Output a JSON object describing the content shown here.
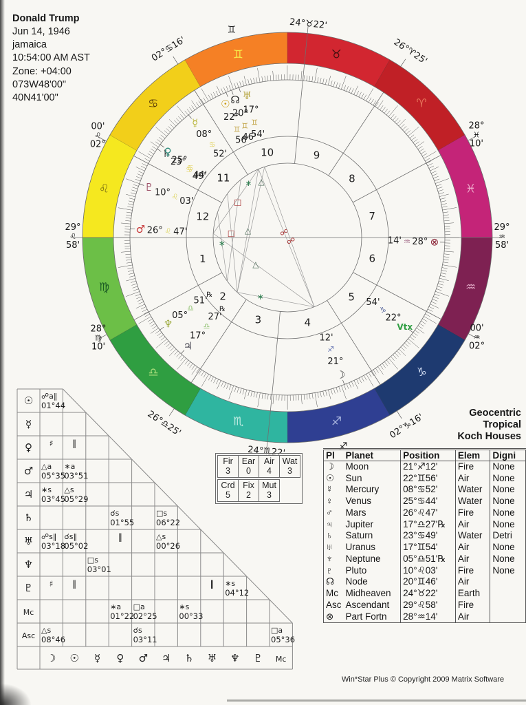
{
  "header": {
    "name": "Donald Trump",
    "lines": [
      "Jun 14, 1946",
      "jamaica",
      "10:54:00 AM AST",
      "Zone: +04:00",
      "073W48'00\"",
      "40N41'00\""
    ]
  },
  "house_system": {
    "lines": [
      "Geocentric",
      "Tropical",
      "Koch Houses"
    ]
  },
  "footer": {
    "credit": "Win*Star Plus © Copyright 2009 Matrix Software"
  },
  "wheel": {
    "asc_lon": 149.9667,
    "signs": [
      {
        "name": "Aries",
        "glyph": "♈",
        "color": "#c02026",
        "glyph_color": "#e8765c"
      },
      {
        "name": "Taurus",
        "glyph": "♉",
        "color": "#d22630",
        "glyph_color": "#44100f"
      },
      {
        "name": "Gemini",
        "glyph": "♊",
        "color": "#f58025",
        "glyph_color": "#f7e94a"
      },
      {
        "name": "Cancer",
        "glyph": "♋",
        "color": "#f2cf1a",
        "glyph_color": "#5c3e08"
      },
      {
        "name": "Leo",
        "glyph": "♌",
        "color": "#f5e81f",
        "glyph_color": "#877c16"
      },
      {
        "name": "Virgo",
        "glyph": "♍",
        "color": "#6cbf47",
        "glyph_color": "#1c5c24"
      },
      {
        "name": "Libra",
        "glyph": "♎",
        "color": "#2f9e41",
        "glyph_color": "#aadd7c"
      },
      {
        "name": "Scorpio",
        "glyph": "♏",
        "color": "#2fb5a0",
        "glyph_color": "#c2ece2"
      },
      {
        "name": "Sagittarius",
        "glyph": "♐",
        "color": "#2f3f92",
        "glyph_color": "#aab6de"
      },
      {
        "name": "Capricorn",
        "glyph": "♑",
        "color": "#1e3a70",
        "glyph_color": "#cdd8ee"
      },
      {
        "name": "Aquarius",
        "glyph": "♒",
        "color": "#7e2152",
        "glyph_color": "#e2aac6"
      },
      {
        "name": "Pisces",
        "glyph": "♓",
        "color": "#c42478",
        "glyph_color": "#eeaccc"
      }
    ],
    "outer_glyphs": [
      {
        "glyph": "♊",
        "lon": 75
      },
      {
        "glyph": "♐",
        "lon": 255
      }
    ],
    "cusps": [
      {
        "house": 1,
        "lon": 149.9667,
        "label": [
          "29°",
          "♌",
          "58'"
        ],
        "stacked": true,
        "axis": "horizontal"
      },
      {
        "house": 2,
        "lon": 178.1667,
        "label": [
          "28°",
          "♍",
          "10'"
        ],
        "stacked": true
      },
      {
        "house": 3,
        "lon": 206.4167,
        "label": [
          "26°♎25'"
        ]
      },
      {
        "house": 4,
        "lon": 234.3667,
        "label": [
          "24°♏22'"
        ],
        "axis": "radial"
      },
      {
        "house": 5,
        "lon": 272.2667,
        "label": [
          "02°♑16'"
        ]
      },
      {
        "house": 6,
        "lon": 302.0,
        "label": [
          "00'",
          "♒",
          "02°"
        ],
        "stacked": true
      },
      {
        "house": 7,
        "lon": 329.9667,
        "label": [
          "29°",
          "♒",
          "58'"
        ],
        "stacked": true,
        "axis": "horizontal"
      },
      {
        "house": 8,
        "lon": 358.1667,
        "label": [
          "28°",
          "♓",
          "10'"
        ],
        "stacked": true
      },
      {
        "house": 9,
        "lon": 26.4167,
        "label": [
          "26°♈25'"
        ]
      },
      {
        "house": 10,
        "lon": 54.3667,
        "label": [
          "24°♉22'"
        ],
        "axis": "radial"
      },
      {
        "house": 11,
        "lon": 92.2667,
        "label": [
          "02°♋16'"
        ]
      },
      {
        "house": 12,
        "lon": 122.0,
        "label": [
          "00'",
          "♌",
          "02°"
        ],
        "stacked": true
      }
    ],
    "planets": [
      {
        "name": "Sun",
        "glyph": "☉",
        "lon": 82.933,
        "deg": "22°",
        "sign": "♊",
        "min": "56'",
        "color": "#c99a10",
        "sign_color": "#c2a448",
        "spread": 2
      },
      {
        "name": "Node",
        "glyph": "☊",
        "lon": 80.767,
        "deg": "20°",
        "sign": "♊",
        "min": "46'",
        "color": "#222222",
        "sign_color": "#c2a448",
        "spread": 0
      },
      {
        "name": "Uranus",
        "glyph": "♅",
        "lon": 77.9,
        "deg": "17°",
        "sign": "♊",
        "min": "54'",
        "color": "#b3a138",
        "sign_color": "#c2a448",
        "spread": -2
      },
      {
        "name": "Mercury",
        "glyph": "☿",
        "lon": 98.867,
        "deg": "08°",
        "sign": "♋",
        "min": "52'",
        "color": "#b9b53a",
        "sign_color": "#e3d466"
      },
      {
        "name": "Saturn",
        "glyph": "♄",
        "lon": 113.817,
        "deg": "23°",
        "sign": "♋",
        "min": "49'",
        "color": "#3f3f3f",
        "sign_color": "#e3d466",
        "spread": 1.4
      },
      {
        "name": "Venus",
        "glyph": "♀",
        "lon": 115.733,
        "deg": "25°",
        "sign": "♋",
        "min": "44'",
        "color": "#2d8b7b",
        "sign_color": "#e3d466",
        "spread": -1.4
      },
      {
        "name": "Pluto",
        "glyph": "♇",
        "lon": 130.05,
        "deg": "10°",
        "sign": "♌",
        "min": "03'",
        "color": "#9c4f66",
        "sign_color": "#ddd45e"
      },
      {
        "name": "Mars",
        "glyph": "♂",
        "lon": 146.783,
        "deg": "26°",
        "sign": "♌",
        "min": "47'",
        "color": "#c63434",
        "sign_color": "#ddd45e"
      },
      {
        "name": "Neptune",
        "glyph": "♆",
        "lon": 185.85,
        "deg": "05°",
        "sign": "♎",
        "min": "51'",
        "rx": true,
        "color": "#9aa838",
        "sign_color": "#8cbf6c"
      },
      {
        "name": "Jupiter",
        "glyph": "♃",
        "lon": 197.45,
        "deg": "17°",
        "sign": "♎",
        "min": "27'",
        "rx": true,
        "color": "#4a4a55",
        "sign_color": "#8cbf6c"
      },
      {
        "name": "Moon",
        "glyph": "☽",
        "lon": 261.2,
        "deg": "21°",
        "sign": "♐",
        "min": "12'",
        "color": "#2f2f2f",
        "sign_color": "#6676b3"
      },
      {
        "name": "Vertex",
        "glyph": "Vtx",
        "lon": 292.9,
        "deg": "22°",
        "sign": "♑",
        "min": "54'",
        "color": "#2f9e41",
        "sign_color": "#56659c",
        "text_glyph": true
      },
      {
        "name": "Part-of-Fortune",
        "glyph": "⊗",
        "lon": 328.233,
        "deg": "28°",
        "sign": "♒",
        "min": "14'",
        "color": "#8a2335",
        "sign_color": "#8f4c70"
      }
    ],
    "aspect_lines": [
      {
        "p1": "Sun",
        "p2": "Moon",
        "glyph": "☍",
        "t": 0.46,
        "gcolor": "#a83434"
      },
      {
        "p1": "Uranus",
        "p2": "Moon",
        "glyph": "☍",
        "t": 0.53,
        "gcolor": "#a83434"
      },
      {
        "p1": "Mars",
        "p2": "Moon",
        "glyph": "△",
        "t": 0.42,
        "gcolor": "#52705e"
      },
      {
        "p1": "Mars",
        "p2": "Sun",
        "glyph": "∗",
        "t": 0.78,
        "gcolor": "#2e7d4f"
      },
      {
        "p1": "Jupiter",
        "p2": "Moon",
        "glyph": "∗",
        "t": 0.3,
        "gcolor": "#2e7d4f"
      },
      {
        "p1": "Jupiter",
        "p2": "Sun",
        "glyph": "△",
        "t": 0.5,
        "gcolor": "#52705e"
      },
      {
        "p1": "Uranus",
        "p2": "Jupiter",
        "glyph": "△",
        "t": 0.12,
        "gcolor": "#52705e"
      },
      {
        "p1": "Saturn",
        "p2": "Jupiter",
        "glyph": "□",
        "t": 0.4,
        "gcolor": "#a83434"
      },
      {
        "p1": "Neptune",
        "p2": "Mercury",
        "glyph": "□",
        "t": 0.78,
        "gcolor": "#a83434"
      },
      {
        "p1": "Pluto",
        "p2": "Neptune",
        "glyph": "∗",
        "t": 0.45,
        "gcolor": "#2e7d4f"
      }
    ]
  },
  "aspect_grid": {
    "row_labels": [
      "☉",
      "☿",
      "♀",
      "♂",
      "♃",
      "♄",
      "♅",
      "♆",
      "♇",
      "Mc",
      "Asc"
    ],
    "col_labels": [
      "☽",
      "☉",
      "☿",
      "♀",
      "♂",
      "♃",
      "♄",
      "♅",
      "♆",
      "♇",
      "Mc"
    ],
    "rows": [
      {
        "cells": {
          "0": {
            "a": "☍a‖",
            "o": "01°44"
          }
        }
      },
      {
        "cells": {}
      },
      {
        "cells": {
          "0": {
            "a": "♯"
          },
          "1": {
            "a": "‖"
          }
        }
      },
      {
        "cells": {
          "0": {
            "a": "△a",
            "o": "05°35"
          },
          "1": {
            "a": "∗a",
            "o": "03°51"
          }
        }
      },
      {
        "cells": {
          "0": {
            "a": "∗s",
            "o": "03°45"
          },
          "1": {
            "a": "△s",
            "o": "05°29"
          }
        }
      },
      {
        "cells": {
          "3": {
            "a": "☌s",
            "o": "01°55"
          },
          "5": {
            "a": "□s",
            "o": "06°22"
          }
        }
      },
      {
        "cells": {
          "0": {
            "a": "☍s‖",
            "o": "03°18"
          },
          "1": {
            "a": "☌s‖",
            "o": "05°02"
          },
          "3": {
            "a": "‖"
          },
          "5": {
            "a": "△s",
            "o": "00°26"
          }
        }
      },
      {
        "cells": {
          "2": {
            "a": "□s",
            "o": "03°01"
          }
        }
      },
      {
        "cells": {
          "0": {
            "a": "♯"
          },
          "1": {
            "a": "‖"
          },
          "7": {
            "a": "‖"
          },
          "8": {
            "a": "∗s",
            "o": "04°12"
          }
        }
      },
      {
        "cells": {
          "3": {
            "a": "∗a",
            "o": "01°22"
          },
          "4": {
            "a": "□a",
            "o": "02°25"
          },
          "6": {
            "a": "∗s",
            "o": "00°33"
          }
        }
      },
      {
        "cells": {
          "0": {
            "a": "△s",
            "o": "08°46"
          },
          "4": {
            "a": "☌s",
            "o": "03°11"
          },
          "10": {
            "a": "□a",
            "o": "05°36"
          }
        }
      }
    ]
  },
  "counts": {
    "elements": {
      "headers": [
        "Fir",
        "Ear",
        "Air",
        "Wat"
      ],
      "values": [
        "3",
        "0",
        "4",
        "3"
      ]
    },
    "modes": {
      "headers": [
        "Crd",
        "Fix",
        "Mut"
      ],
      "values": [
        "5",
        "2",
        "3"
      ]
    }
  },
  "planet_table": {
    "headers": [
      "Pl",
      "Planet",
      "Position",
      "Elem",
      "Digni"
    ],
    "rows": [
      [
        "☽",
        "Moon",
        "21°♐12'",
        "Fire",
        "None"
      ],
      [
        "☉",
        "Sun",
        "22°♊56'",
        "Air",
        "None"
      ],
      [
        "☿",
        "Mercury",
        "08°♋52'",
        "Water",
        "None"
      ],
      [
        "♀",
        "Venus",
        "25°♋44'",
        "Water",
        "None"
      ],
      [
        "♂",
        "Mars",
        "26°♌47'",
        "Fire",
        "None"
      ],
      [
        "♃",
        "Jupiter",
        "17°♎27'℞",
        "Air",
        "None"
      ],
      [
        "♄",
        "Saturn",
        "23°♋49'",
        "Water",
        "Detri"
      ],
      [
        "♅",
        "Uranus",
        "17°♊54'",
        "Air",
        "None"
      ],
      [
        "♆",
        "Neptune",
        "05°♎51'℞",
        "Air",
        "None"
      ],
      [
        "♇",
        "Pluto",
        "10°♌03'",
        "Fire",
        "None"
      ],
      [
        "☊",
        "Node",
        "20°♊46'",
        "Air",
        ""
      ],
      [
        "Mc",
        "Midheaven",
        "24°♉22'",
        "Earth",
        ""
      ],
      [
        "Asc",
        "Ascendant",
        "29°♌58'",
        "Fire",
        ""
      ],
      [
        "⊗",
        "Part Fortn",
        "28°♒14'",
        "Air",
        ""
      ]
    ]
  }
}
